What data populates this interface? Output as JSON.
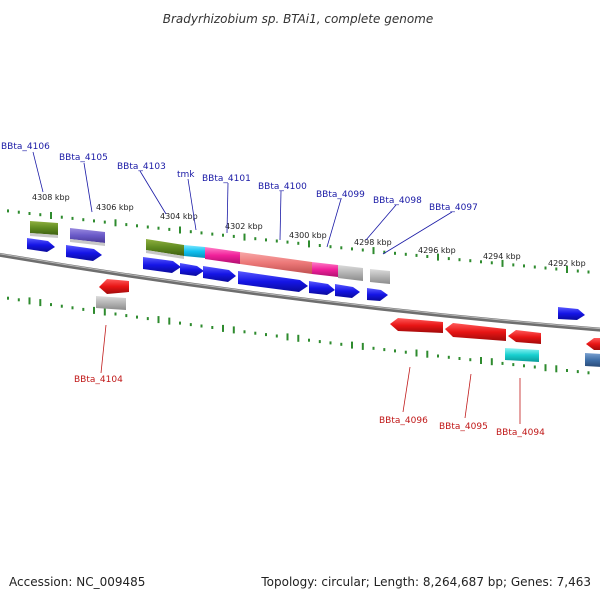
{
  "title": "Bradyrhizobium sp. BTAi1, complete genome",
  "footer": {
    "accession": "Accession: NC_009485",
    "summary": "Topology: circular; Length: 8,264,687 bp; Genes: 7,463"
  },
  "scale_labels": [
    "4308 kbp",
    "4306 kbp",
    "4304 kbp",
    "4302 kbp",
    "4300 kbp",
    "4298 kbp",
    "4296 kbp",
    "4294 kbp",
    "4292 kbp"
  ],
  "gene_labels_forward": [
    "BBta_4106",
    "BBta_4105",
    "BBta_4103",
    "tmk",
    "BBta_4101",
    "BBta_4100",
    "BBta_4099",
    "BBta_4098",
    "BBta_4097"
  ],
  "gene_labels_reverse": [
    "BBta_4104",
    "BBta_4096",
    "BBta_4095",
    "BBta_4094"
  ],
  "colors": {
    "forward_label": "#1a1aa6",
    "reverse_label": "#c01818",
    "backbone": "#777777",
    "tick": "#2e8b2e",
    "cds_forward": "#1515e0",
    "cds_reverse": "#e01515"
  }
}
